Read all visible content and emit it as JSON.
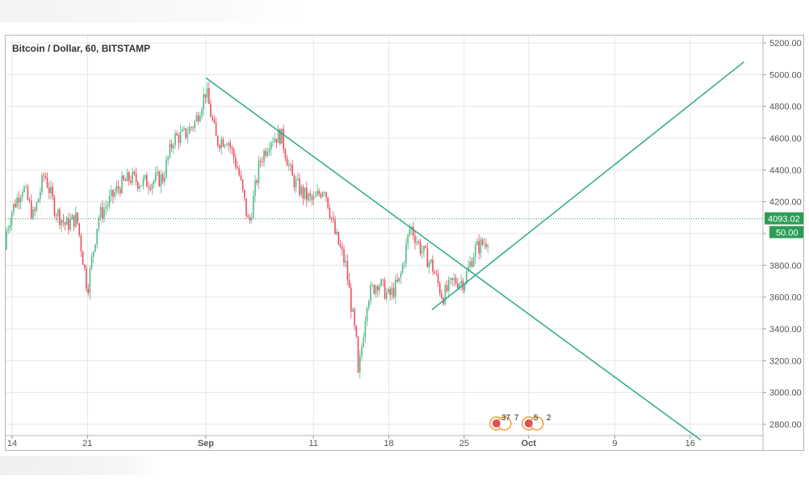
{
  "chart_data": {
    "type": "candlestick",
    "title": "Bitcoin / Dollar, 60, BITSTAMP",
    "x_ticks": [
      "14",
      "21",
      "Sep",
      "11",
      "18",
      "25",
      "Oct",
      "9",
      "16"
    ],
    "y_ticks": [
      "2800.00",
      "3000.00",
      "3200.00",
      "3400.00",
      "3600.00",
      "3800.00",
      "4000.00",
      "4200.00",
      "4400.00",
      "4600.00",
      "4800.00",
      "5000.00",
      "5200.00"
    ],
    "ylim": [
      2700,
      5300
    ],
    "last_price": "4093.02",
    "last_price_value": 4093.02,
    "second_tag": "50.00",
    "price_path": [
      {
        "date": "Aug 13",
        "close": 3900
      },
      {
        "date": "Aug 14",
        "close": 4150
      },
      {
        "date": "Aug 15",
        "close": 4300
      },
      {
        "date": "Aug 16",
        "close": 4100
      },
      {
        "date": "Aug 17",
        "close": 4380
      },
      {
        "date": "Aug 18",
        "close": 4150
      },
      {
        "date": "Aug 19",
        "close": 4050
      },
      {
        "date": "Aug 20",
        "close": 4100
      },
      {
        "date": "Aug 21",
        "close": 3650
      },
      {
        "date": "Aug 22",
        "close": 4100
      },
      {
        "date": "Aug 23",
        "close": 4200
      },
      {
        "date": "Aug 24",
        "close": 4300
      },
      {
        "date": "Aug 25",
        "close": 4350
      },
      {
        "date": "Aug 26",
        "close": 4320
      },
      {
        "date": "Aug 27",
        "close": 4330
      },
      {
        "date": "Aug 28",
        "close": 4350
      },
      {
        "date": "Aug 29",
        "close": 4600
      },
      {
        "date": "Aug 30",
        "close": 4620
      },
      {
        "date": "Aug 31",
        "close": 4700
      },
      {
        "date": "Sep 1",
        "close": 4900
      },
      {
        "date": "Sep 2",
        "close": 4580
      },
      {
        "date": "Sep 3",
        "close": 4600
      },
      {
        "date": "Sep 4",
        "close": 4400
      },
      {
        "date": "Sep 5",
        "close": 4050
      },
      {
        "date": "Sep 6",
        "close": 4450
      },
      {
        "date": "Sep 7",
        "close": 4600
      },
      {
        "date": "Sep 8",
        "close": 4620
      },
      {
        "date": "Sep 9",
        "close": 4350
      },
      {
        "date": "Sep 10",
        "close": 4250
      },
      {
        "date": "Sep 11",
        "close": 4200
      },
      {
        "date": "Sep 12",
        "close": 4300
      },
      {
        "date": "Sep 13",
        "close": 4000
      },
      {
        "date": "Sep 14",
        "close": 3800
      },
      {
        "date": "Sep 15",
        "close": 3300
      },
      {
        "date": "Sep 15",
        "close": 3000
      },
      {
        "date": "Sep 16",
        "close": 3600
      },
      {
        "date": "Sep 17",
        "close": 3700
      },
      {
        "date": "Sep 18",
        "close": 3600
      },
      {
        "date": "Sep 19",
        "close": 3700
      },
      {
        "date": "Sep 20",
        "close": 4050
      },
      {
        "date": "Sep 21",
        "close": 3900
      },
      {
        "date": "Sep 22",
        "close": 3800
      },
      {
        "date": "Sep 23",
        "close": 3600
      },
      {
        "date": "Sep 24",
        "close": 3700
      },
      {
        "date": "Sep 25",
        "close": 3700
      },
      {
        "date": "Sep 26",
        "close": 3900
      },
      {
        "date": "Sep 27",
        "close": 3950
      },
      {
        "date": "Sep 28",
        "close": 4093
      }
    ],
    "trend_lines": [
      {
        "x1": "Sep 1",
        "y1": 4980,
        "x2": "Oct 17",
        "y2": 2700
      },
      {
        "x1": "Sep 22",
        "y1": 3520,
        "x2": "Oct 21",
        "y2": 5080
      }
    ],
    "event_markers": [
      {
        "date": "Sep 28",
        "label_a": "37",
        "label_b": "7"
      },
      {
        "date": "Oct 1",
        "label_a": "5",
        "label_b": "2"
      }
    ],
    "colors": {
      "up": "#53b987",
      "down": "#eb4d5c",
      "trend": "#2ea98a",
      "price_line": "#2c9e54",
      "grid": "#e6e6e6"
    }
  }
}
